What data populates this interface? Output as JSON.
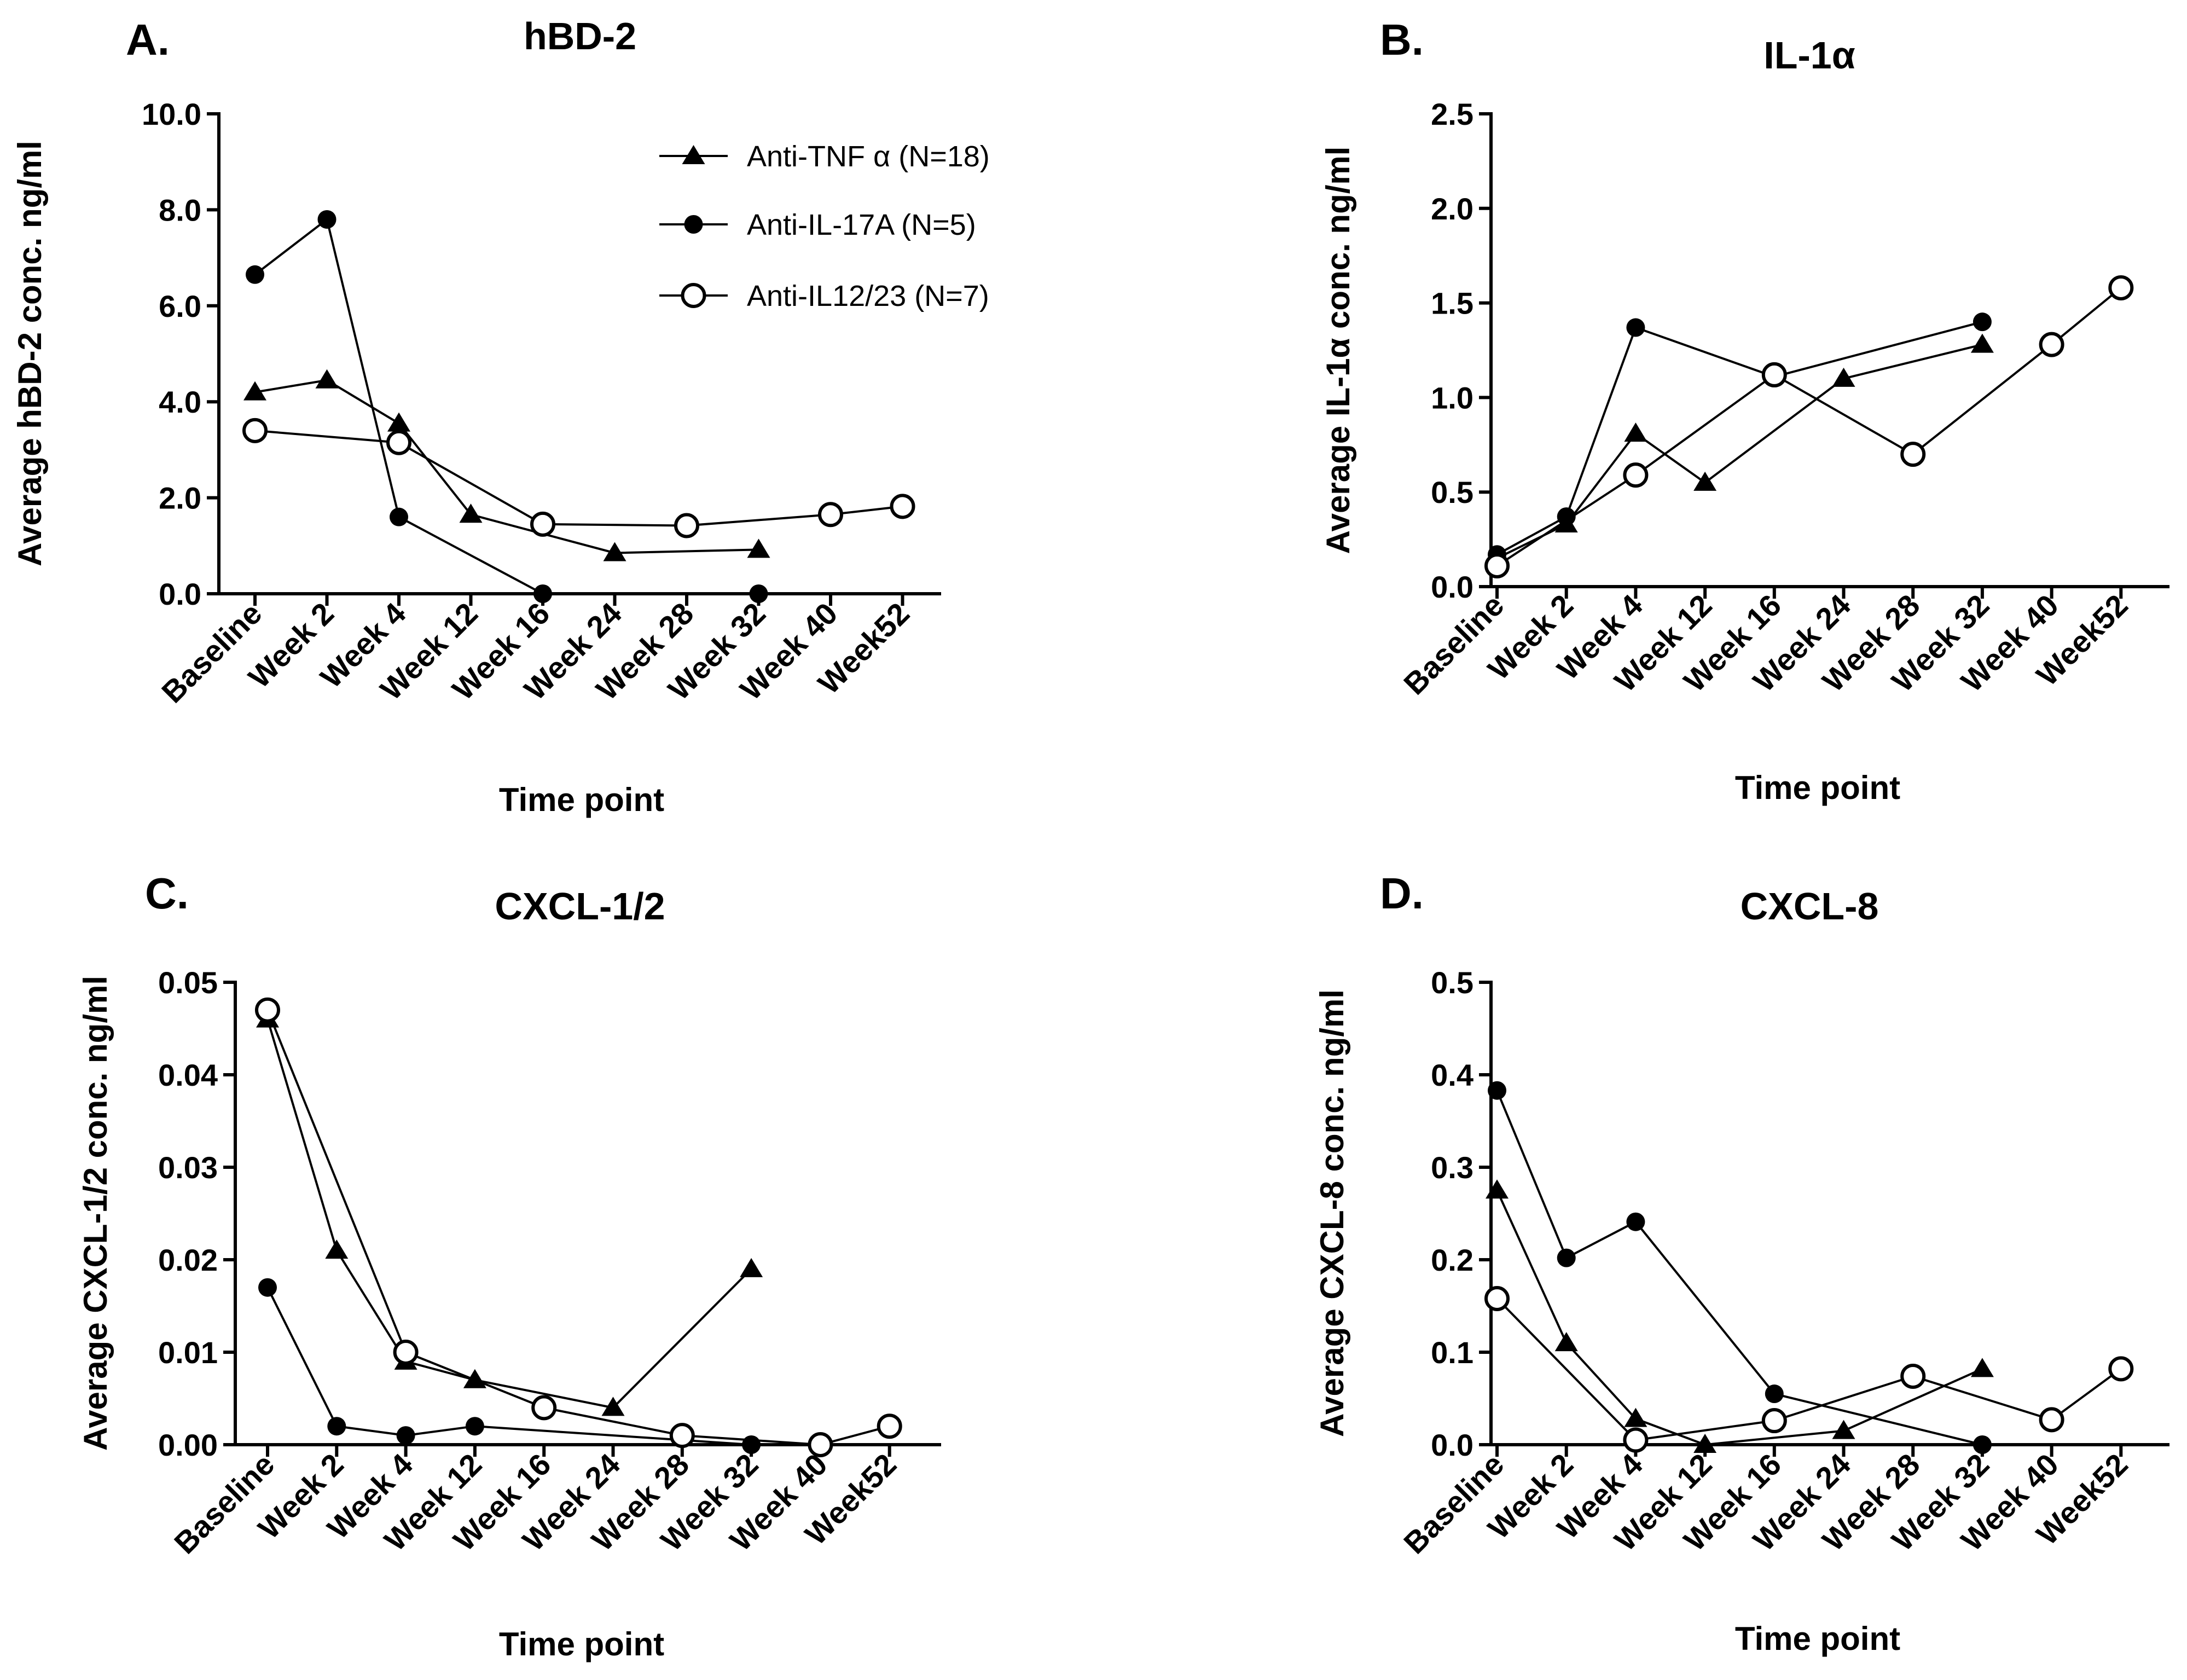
{
  "chart_data": [
    {
      "type": "line",
      "panel_label": "A.",
      "title": "hBD-2",
      "ylabel": "Average hBD-2 conc. ng/ml",
      "xlabel": "Time point",
      "ylim": [
        0,
        10
      ],
      "yticks": [
        "0.0",
        "2.0",
        "4.0",
        "6.0",
        "8.0",
        "10.0"
      ],
      "categories": [
        "Baseline",
        "Week 2",
        "Week 4",
        "Week 12",
        "Week 16",
        "Week 24",
        "Week 28",
        "Week 32",
        "Week 40",
        "Week52"
      ],
      "legend": true,
      "series": [
        {
          "name": "Anti-TNF α (N=18)",
          "marker": "triangle",
          "values": [
            4.2,
            4.45,
            3.55,
            1.65,
            null,
            0.85,
            null,
            0.92,
            null,
            null
          ]
        },
        {
          "name": "Anti-IL-17A  (N=5)",
          "marker": "filled-circle",
          "values": [
            6.65,
            7.8,
            1.6,
            null,
            0.0,
            null,
            null,
            0.0,
            null,
            null
          ]
        },
        {
          "name": "Anti-IL12/23 (N=7)",
          "marker": "open-circle",
          "values": [
            3.4,
            null,
            3.15,
            null,
            1.45,
            null,
            1.42,
            null,
            1.65,
            1.82
          ]
        }
      ]
    },
    {
      "type": "line",
      "panel_label": "B.",
      "title": "IL-1α",
      "ylabel": "Average IL-1α conc. ng/ml",
      "xlabel": "Time point",
      "ylim": [
        0,
        2.5
      ],
      "yticks": [
        "0.0",
        "0.5",
        "1.0",
        "1.5",
        "2.0",
        "2.5"
      ],
      "categories": [
        "Baseline",
        "Week 2",
        "Week 4",
        "Week 12",
        "Week 16",
        "Week 24",
        "Week 28",
        "Week 32",
        "Week 40",
        "Week52"
      ],
      "legend": false,
      "series": [
        {
          "name": "Anti-TNF α (N=18)",
          "marker": "triangle",
          "values": [
            0.15,
            0.33,
            0.81,
            0.55,
            null,
            1.1,
            null,
            1.28,
            null,
            null
          ]
        },
        {
          "name": "Anti-IL-17A  (N=5)",
          "marker": "filled-circle",
          "values": [
            0.17,
            0.37,
            1.37,
            null,
            1.11,
            null,
            null,
            1.4,
            null,
            null
          ]
        },
        {
          "name": "Anti-IL12/23 (N=7)",
          "marker": "open-circle",
          "values": [
            0.11,
            null,
            0.59,
            null,
            1.12,
            null,
            0.7,
            null,
            1.28,
            1.58
          ]
        }
      ]
    },
    {
      "type": "line",
      "panel_label": "C.",
      "title": "CXCL-1/2",
      "ylabel": "Average CXCL-1/2 conc. ng/ml",
      "xlabel": "Time point",
      "ylim": [
        0,
        0.05
      ],
      "yticks": [
        "0.00",
        "0.01",
        "0.02",
        "0.03",
        "0.04",
        "0.05"
      ],
      "categories": [
        "Baseline",
        "Week 2",
        "Week 4",
        "Week 12",
        "Week 16",
        "Week 24",
        "Week 28",
        "Week 32",
        "Week 40",
        "Week52"
      ],
      "legend": false,
      "series": [
        {
          "name": "Anti-TNF α (N=18)",
          "marker": "triangle",
          "values": [
            0.046,
            0.021,
            0.009,
            0.007,
            null,
            0.004,
            null,
            0.019,
            null,
            null
          ]
        },
        {
          "name": "Anti-IL-17A  (N=5)",
          "marker": "filled-circle",
          "values": [
            0.017,
            0.002,
            0.001,
            0.002,
            null,
            null,
            null,
            0.0,
            null,
            null
          ]
        },
        {
          "name": "Anti-IL12/23 (N=7)",
          "marker": "open-circle",
          "values": [
            0.047,
            null,
            0.01,
            null,
            0.004,
            null,
            0.001,
            null,
            0.0,
            0.002
          ]
        }
      ]
    },
    {
      "type": "line",
      "panel_label": "D.",
      "title": "CXCL-8",
      "ylabel": "Average CXCL-8 conc. ng/ml",
      "xlabel": "Time point",
      "ylim": [
        0,
        0.5
      ],
      "yticks": [
        "0.0",
        "0.1",
        "0.2",
        "0.3",
        "0.4",
        "0.5"
      ],
      "categories": [
        "Baseline",
        "Week 2",
        "Week 4",
        "Week 12",
        "Week 16",
        "Week 24",
        "Week 28",
        "Week 32",
        "Week 40",
        "Week52"
      ],
      "legend": false,
      "series": [
        {
          "name": "Anti-TNF α (N=18)",
          "marker": "triangle",
          "values": [
            0.275,
            0.11,
            0.028,
            0.0,
            null,
            0.015,
            null,
            0.082,
            null,
            null
          ]
        },
        {
          "name": "Anti-IL-17A  (N=5)",
          "marker": "filled-circle",
          "values": [
            0.383,
            0.202,
            0.241,
            null,
            0.055,
            null,
            null,
            0.0,
            null,
            null
          ]
        },
        {
          "name": "Anti-IL12/23 (N=7)",
          "marker": "open-circle",
          "values": [
            0.158,
            null,
            0.005,
            null,
            0.026,
            null,
            0.074,
            null,
            0.027,
            0.082
          ]
        }
      ]
    }
  ]
}
